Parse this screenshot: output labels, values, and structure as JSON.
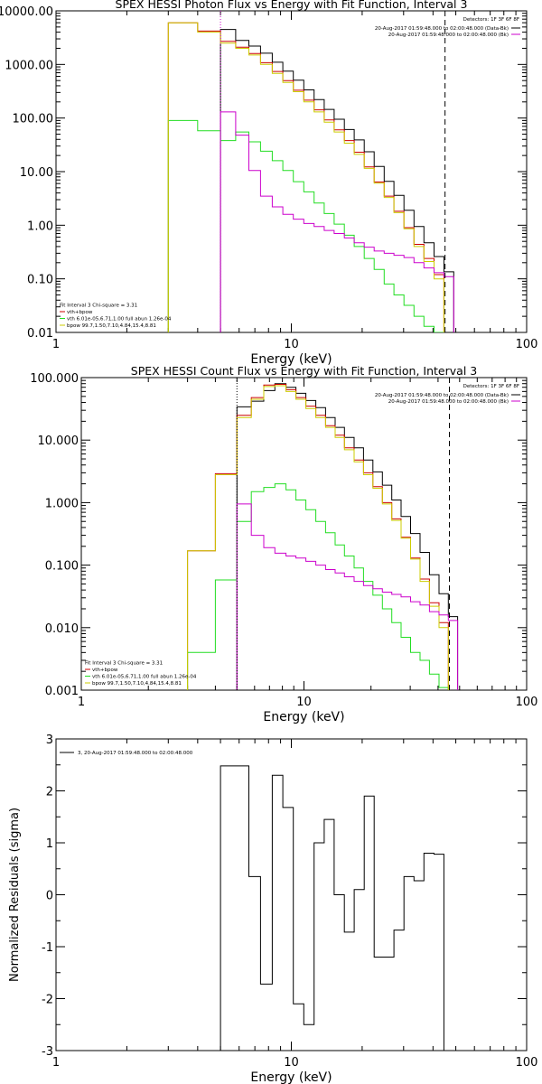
{
  "colors": {
    "data": "#000000",
    "total": "#cc0000",
    "vth": "#22dd22",
    "bpow": "#cccc00",
    "bk": "#cc00cc",
    "axis": "#000000"
  },
  "chart_data": [
    {
      "type": "line",
      "title": "SPEX HESSI Photon Flux vs Energy with Fit Function, Interval 3",
      "xlabel": "Energy (keV)",
      "ylabel": "",
      "xscale": "log",
      "yscale": "log",
      "xlim": [
        1,
        100
      ],
      "ylim": [
        0.01,
        10000
      ],
      "xticks": [
        {
          "v": 1,
          "label": "1"
        },
        {
          "v": 10,
          "label": "10"
        },
        {
          "v": 100,
          "label": "100"
        }
      ],
      "yticks": [
        {
          "v": 0.01,
          "label": "0.01"
        },
        {
          "v": 0.1,
          "label": "0.10"
        },
        {
          "v": 1,
          "label": "1.00"
        },
        {
          "v": 10,
          "label": "10.00"
        },
        {
          "v": 100,
          "label": "100.00"
        },
        {
          "v": 1000,
          "label": "1000.00"
        },
        {
          "v": 10000,
          "label": "10000.00"
        }
      ],
      "vlines": [
        {
          "x": 5,
          "style": "dotted",
          "color": "#cc00cc"
        },
        {
          "x": 45,
          "style": "dashed",
          "color": "#000000"
        }
      ],
      "edges": [
        3,
        4,
        5,
        5.8,
        6.6,
        7.4,
        8.3,
        9.2,
        10.2,
        11.3,
        12.5,
        13.8,
        15.2,
        16.8,
        18.5,
        20.4,
        22.5,
        24.8,
        27.3,
        30.1,
        33.2,
        36.6,
        40.4,
        44.5,
        49
      ],
      "series": [
        {
          "name": "data",
          "color": "#000000",
          "start": 2,
          "values": [
            4500,
            2800,
            2200,
            1620,
            1100,
            750,
            510,
            335,
            220,
            145,
            95,
            61,
            39,
            23.5,
            12.5,
            6.6,
            3.6,
            1.9,
            0.95,
            0.47,
            0.26,
            0.135
          ]
        },
        {
          "name": "vth+bpow",
          "color": "#cc0000",
          "start": 0,
          "values": [
            6000,
            4200,
            2700,
            2100,
            1600,
            1080,
            740,
            500,
            330,
            215,
            142,
            92,
            60,
            38,
            23,
            12.3,
            6.4,
            3.5,
            1.82,
            0.9,
            0.44,
            0.24,
            0.12
          ]
        },
        {
          "name": "vth",
          "color": "#22dd22",
          "start": 0,
          "values": [
            90,
            58,
            38,
            55,
            36,
            24,
            16,
            10.5,
            6.5,
            4.2,
            2.6,
            1.65,
            1.05,
            0.65,
            0.4,
            0.24,
            0.15,
            0.08,
            0.05,
            0.032,
            0.02,
            0.013,
            0.01
          ]
        },
        {
          "name": "bpow",
          "color": "#cccc00",
          "start": 0,
          "values": [
            6000,
            4000,
            2500,
            2000,
            1500,
            1000,
            680,
            460,
            310,
            200,
            130,
            84,
            55,
            34,
            21,
            11.5,
            6.1,
            3.3,
            1.72,
            0.86,
            0.4,
            0.21,
            0.1
          ]
        },
        {
          "name": "bk",
          "color": "#cc00cc",
          "start": 2,
          "values": [
            130,
            48,
            10.5,
            3.5,
            2.2,
            1.6,
            1.3,
            1.08,
            0.95,
            0.8,
            0.7,
            0.58,
            0.47,
            0.39,
            0.33,
            0.3,
            0.275,
            0.25,
            0.2,
            0.16,
            0.13,
            0.11
          ]
        }
      ],
      "detectors": "Detectors: 1F 3F 6F 8F",
      "legend_right": [
        {
          "text": "20-Aug-2017 01:59:48.000 to 02:00:48.000 (Data-Bk)",
          "color": "#000000"
        },
        {
          "text": "20-Aug-2017 01:59:48.000 to 02:00:48.000 (Bk)",
          "color": "#cc00cc"
        }
      ],
      "legend_left": [
        {
          "text": "Fit Interval 3   Chi-square = 3.31",
          "color": null
        },
        {
          "text": "vth+bpow",
          "color": "#cc0000"
        },
        {
          "text": "vth 6.01e-05,6.71,1.00  full abun 1.26e-04",
          "color": "#22dd22"
        },
        {
          "text": "bpow 99.7,1.50,7.10,4.84,15.4,8.81",
          "color": "#cccc00"
        }
      ]
    },
    {
      "type": "line",
      "title": "SPEX HESSI Count Flux vs Energy with Fit Function, Interval 3",
      "xlabel": "Energy (keV)",
      "ylabel": "",
      "xscale": "log",
      "yscale": "log",
      "xlim": [
        1,
        100
      ],
      "ylim": [
        0.001,
        100
      ],
      "xticks": [
        {
          "v": 1,
          "label": "1"
        },
        {
          "v": 10,
          "label": "10"
        },
        {
          "v": 100,
          "label": "100"
        }
      ],
      "yticks": [
        {
          "v": 0.001,
          "label": "0.001"
        },
        {
          "v": 0.01,
          "label": "0.010"
        },
        {
          "v": 0.1,
          "label": "0.100"
        },
        {
          "v": 1,
          "label": "1.000"
        },
        {
          "v": 10,
          "label": "10.000"
        },
        {
          "v": 100,
          "label": "100.000"
        }
      ],
      "vlines": [
        {
          "x": 5,
          "style": "dotted",
          "color": "#000000"
        },
        {
          "x": 45,
          "style": "dashed",
          "color": "#000000"
        }
      ],
      "edges": [
        3,
        4,
        5,
        5.8,
        6.6,
        7.4,
        8.3,
        9.2,
        10.2,
        11.3,
        12.5,
        13.8,
        15.2,
        16.8,
        18.5,
        20.4,
        22.5,
        24.8,
        27.3,
        30.1,
        33.2,
        36.6,
        40.4,
        44.5,
        49
      ],
      "series": [
        {
          "name": "data",
          "color": "#000000",
          "start": 2,
          "values": [
            34,
            42,
            62,
            80,
            70,
            56,
            43,
            33,
            23,
            16,
            11,
            7.5,
            4.8,
            3.1,
            1.9,
            1.1,
            0.6,
            0.32,
            0.16,
            0.07,
            0.035,
            0.015
          ]
        },
        {
          "name": "vth+bpow",
          "color": "#cc0000",
          "start": 0,
          "values": [
            0.17,
            2.9,
            25,
            48,
            76,
            78,
            64,
            48,
            35,
            25,
            17,
            12,
            7.5,
            4.8,
            3.0,
            1.8,
            1.0,
            0.55,
            0.28,
            0.13,
            0.06,
            0.025,
            0.012
          ]
        },
        {
          "name": "vth",
          "color": "#22dd22",
          "start": 0,
          "values": [
            0.004,
            0.058,
            0.5,
            1.5,
            1.75,
            2.0,
            1.6,
            1.1,
            0.77,
            0.5,
            0.33,
            0.21,
            0.14,
            0.09,
            0.055,
            0.033,
            0.02,
            0.012,
            0.007,
            0.004,
            0.003,
            0.0018,
            0.0011
          ]
        },
        {
          "name": "bpow",
          "color": "#cccc00",
          "start": 0,
          "values": [
            0.17,
            2.8,
            23,
            45,
            72,
            74,
            60,
            45,
            32,
            23,
            16,
            11,
            7,
            4.5,
            2.8,
            1.7,
            0.95,
            0.52,
            0.27,
            0.125,
            0.055,
            0.022,
            0.01
          ]
        },
        {
          "name": "bk",
          "color": "#cc00cc",
          "start": 2,
          "values": [
            0.95,
            0.3,
            0.19,
            0.155,
            0.14,
            0.13,
            0.115,
            0.1,
            0.085,
            0.075,
            0.065,
            0.055,
            0.047,
            0.042,
            0.037,
            0.034,
            0.031,
            0.026,
            0.023,
            0.018,
            0.016,
            0.013
          ]
        }
      ],
      "detectors": "Detectors: 1F 3F 6F 8F",
      "legend_right": [
        {
          "text": "20-Aug-2017 01:59:48.000 to 02:00:48.000 (Data-Bk)",
          "color": "#000000"
        },
        {
          "text": "20-Aug-2017 01:59:48.000 to 02:00:48.000 (Bk)",
          "color": "#cc00cc"
        }
      ],
      "legend_left": [
        {
          "text": "Fit Interval 3   Chi-square = 3.31",
          "color": null
        },
        {
          "text": "vth+bpow",
          "color": "#cc0000"
        },
        {
          "text": "vth 6.01e-05,6.71,1.00  full abun 1.26e-04",
          "color": "#22dd22"
        },
        {
          "text": "bpow 99.7,1.50,7.10,4.84,15.4,8.81",
          "color": "#cccc00"
        }
      ]
    },
    {
      "type": "line",
      "title": "",
      "xlabel": "Energy (keV)",
      "ylabel": "Normalized Residuals (sigma)",
      "xscale": "log",
      "yscale": "linear",
      "xlim": [
        1,
        100
      ],
      "ylim": [
        -3,
        3
      ],
      "xticks": [
        {
          "v": 1,
          "label": "1"
        },
        {
          "v": 10,
          "label": "10"
        },
        {
          "v": 100,
          "label": "100"
        }
      ],
      "yticks": [
        {
          "v": -3,
          "label": "-3"
        },
        {
          "v": -2,
          "label": "-2"
        },
        {
          "v": -1,
          "label": "-1"
        },
        {
          "v": 0,
          "label": "0"
        },
        {
          "v": 1,
          "label": "1"
        },
        {
          "v": 2,
          "label": "2"
        },
        {
          "v": 3,
          "label": "3"
        }
      ],
      "vlines": [],
      "edges": [
        3,
        4,
        5,
        5.8,
        6.6,
        7.4,
        8.3,
        9.2,
        10.2,
        11.3,
        12.5,
        13.8,
        15.2,
        16.8,
        18.5,
        20.4,
        22.5,
        24.8,
        27.3,
        30.1,
        33.2,
        36.6,
        40.4,
        44.5,
        49
      ],
      "series": [
        {
          "name": "3, 20-Aug-2017 01:59:48.000 to 02:00:48.000",
          "color": "#000000",
          "start": 2,
          "values": [
            2.48,
            2.48,
            0.35,
            -1.72,
            2.3,
            1.68,
            -2.1,
            -2.5,
            1.0,
            1.45,
            0.0,
            -0.72,
            0.1,
            1.9,
            -1.2,
            -1.2,
            -0.68,
            0.35,
            0.27,
            0.8,
            0.78
          ]
        }
      ],
      "legend_left": [
        {
          "text": "3, 20-Aug-2017 01:59:48.000 to 02:00:48.000",
          "color": "#000000"
        }
      ]
    }
  ]
}
